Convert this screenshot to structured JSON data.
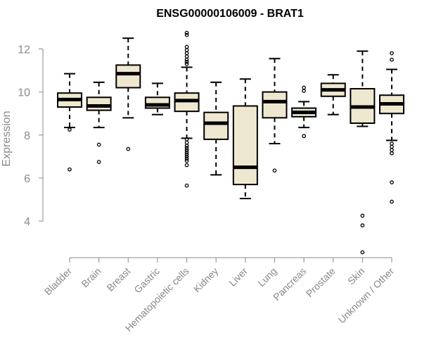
{
  "chart_data": {
    "type": "boxplot",
    "title": "ENSG00000106009 - BRAT1",
    "xlabel": "",
    "ylabel": "Expression",
    "ylim": [
      2.3,
      12.9
    ],
    "yticks": [
      4,
      6,
      8,
      10,
      12
    ],
    "box_fill": "#efe8d0",
    "categories": [
      "Bladder",
      "Brain",
      "Breast",
      "Gastric",
      "Hematopoietic cells",
      "Kidney",
      "Liver",
      "Lung",
      "Pancreas",
      "Prostate",
      "Skin",
      "Unknown / Other"
    ],
    "boxes": [
      {
        "name": "Bladder",
        "whisker_low": 8.35,
        "q1": 9.3,
        "median": 9.65,
        "q3": 9.95,
        "whisker_high": 10.85,
        "outliers": [
          8.25,
          6.4
        ]
      },
      {
        "name": "Brain",
        "whisker_low": 8.35,
        "q1": 9.15,
        "median": 9.35,
        "q3": 9.75,
        "whisker_high": 10.45,
        "outliers": [
          7.55,
          6.75
        ]
      },
      {
        "name": "Breast",
        "whisker_low": 8.8,
        "q1": 10.2,
        "median": 10.85,
        "q3": 11.25,
        "whisker_high": 12.5,
        "outliers": [
          7.35
        ]
      },
      {
        "name": "Gastric",
        "whisker_low": 8.95,
        "q1": 9.25,
        "median": 9.4,
        "q3": 9.75,
        "whisker_high": 10.4,
        "outliers": []
      },
      {
        "name": "Hematopoietic cells",
        "whisker_low": 7.85,
        "q1": 9.1,
        "median": 9.6,
        "q3": 9.95,
        "whisker_high": 11.15,
        "outliers": [
          12.75,
          12.65,
          12.1,
          11.95,
          11.8,
          11.65,
          11.5,
          11.4,
          11.3,
          7.8,
          7.65,
          7.5,
          7.4,
          7.3,
          7.2,
          7.1,
          7.0,
          6.9,
          6.8,
          6.6,
          5.65
        ]
      },
      {
        "name": "Kidney",
        "whisker_low": 6.15,
        "q1": 7.8,
        "median": 8.55,
        "q3": 9.05,
        "whisker_high": 10.45,
        "outliers": []
      },
      {
        "name": "Liver",
        "whisker_low": 5.05,
        "q1": 5.7,
        "median": 6.5,
        "q3": 9.35,
        "whisker_high": 10.6,
        "outliers": []
      },
      {
        "name": "Lung",
        "whisker_low": 7.6,
        "q1": 8.8,
        "median": 9.55,
        "q3": 10.0,
        "whisker_high": 11.55,
        "outliers": [
          6.35
        ]
      },
      {
        "name": "Pancreas",
        "whisker_low": 8.35,
        "q1": 8.85,
        "median": 9.05,
        "q3": 9.25,
        "whisker_high": 9.55,
        "outliers": [
          10.2,
          10.05,
          7.95
        ]
      },
      {
        "name": "Prostate",
        "whisker_low": 8.95,
        "q1": 9.8,
        "median": 10.1,
        "q3": 10.4,
        "whisker_high": 10.8,
        "outliers": []
      },
      {
        "name": "Skin",
        "whisker_low": 8.4,
        "q1": 8.55,
        "median": 9.3,
        "q3": 10.15,
        "whisker_high": 11.9,
        "outliers": [
          4.25,
          3.8,
          2.55
        ]
      },
      {
        "name": "Unknown / Other",
        "whisker_low": 7.75,
        "q1": 9.0,
        "median": 9.45,
        "q3": 9.85,
        "whisker_high": 11.05,
        "outliers": [
          11.8,
          11.5,
          7.6,
          7.45,
          7.3,
          7.15,
          5.8,
          4.9
        ]
      }
    ]
  }
}
